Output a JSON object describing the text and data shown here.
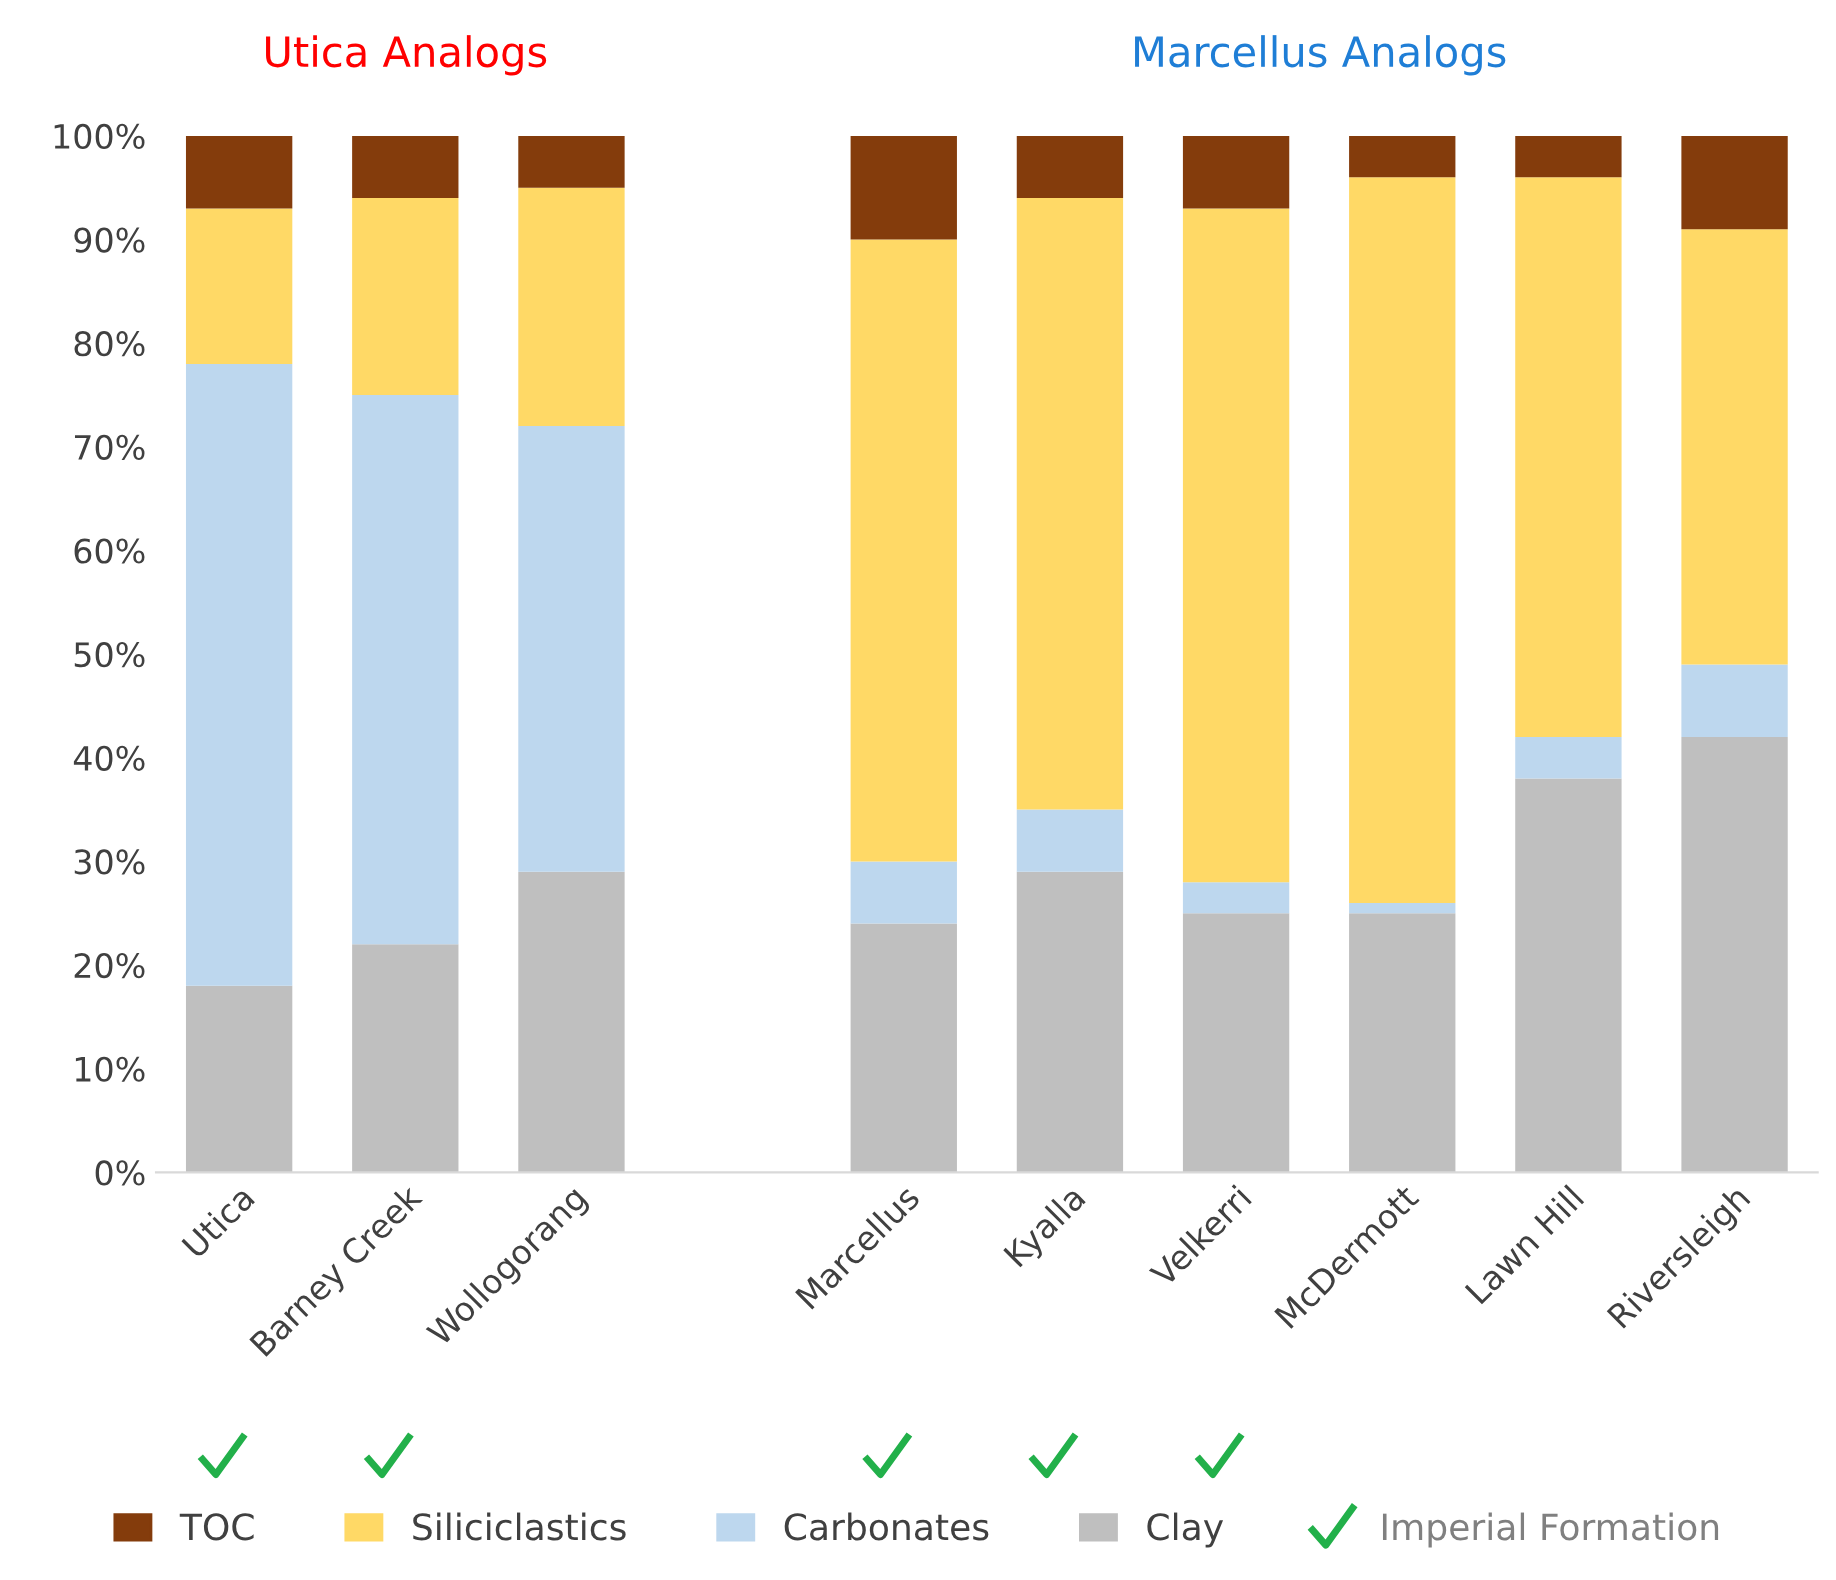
{
  "chart_data": {
    "type": "bar",
    "stacked": true,
    "categories": [
      "Utica",
      "Barney Creek",
      "Wollogorang",
      null,
      "Marcellus",
      "Kyalla",
      "Velkerri",
      "McDermott",
      "Lawn Hill",
      "Riversleigh"
    ],
    "series": [
      {
        "name": "Clay",
        "color": "#bfbfbf",
        "values": [
          18,
          22,
          29,
          null,
          24,
          29,
          25,
          25,
          38,
          42
        ]
      },
      {
        "name": "Carbonates",
        "color": "#bdd7ee",
        "values": [
          60,
          53,
          43,
          null,
          6,
          6,
          3,
          1,
          4,
          7
        ]
      },
      {
        "name": "Siliciclastics",
        "color": "#ffd966",
        "values": [
          15,
          19,
          23,
          null,
          60,
          59,
          65,
          70,
          54,
          42
        ]
      },
      {
        "name": "TOC",
        "color": "#843c0c",
        "values": [
          7,
          6,
          5,
          null,
          10,
          6,
          7,
          4,
          4,
          9
        ]
      }
    ],
    "ylim": [
      0,
      100
    ],
    "yticks": [
      {
        "value": 0,
        "label": "0%"
      },
      {
        "value": 10,
        "label": "10%"
      },
      {
        "value": 20,
        "label": "20%"
      },
      {
        "value": 30,
        "label": "30%"
      },
      {
        "value": 40,
        "label": "40%"
      },
      {
        "value": 50,
        "label": "50%"
      },
      {
        "value": 60,
        "label": "60%"
      },
      {
        "value": 70,
        "label": "70%"
      },
      {
        "value": 80,
        "label": "80%"
      },
      {
        "value": 90,
        "label": "90%"
      },
      {
        "value": 100,
        "label": "100%"
      }
    ],
    "grid": false,
    "legend": "bottom",
    "annotations": [
      "Utica Analogs",
      "Marcellus Analogs",
      "Imperial Formation"
    ]
  }
}
